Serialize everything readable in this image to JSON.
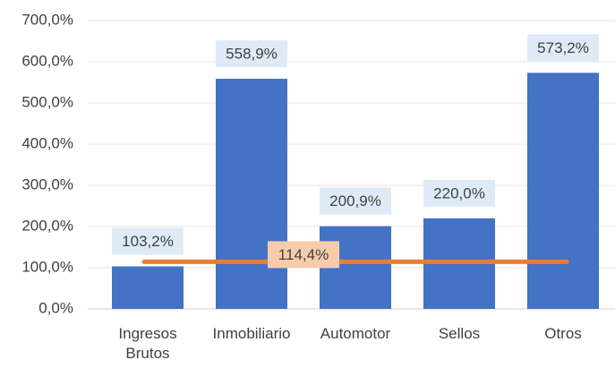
{
  "chart_data": {
    "type": "bar",
    "categories": [
      "Ingresos Brutos",
      "Inmobiliario",
      "Automotor",
      "Sellos",
      "Otros"
    ],
    "values": [
      103.2,
      558.9,
      200.9,
      220.0,
      573.2
    ],
    "value_labels": [
      "103,2%",
      "558,9%",
      "200,9%",
      "220,0%",
      "573,2%"
    ],
    "color": "#4472c4",
    "reference_line": {
      "value": 114.4,
      "label": "114,4%",
      "color": "#ed7d31"
    },
    "ylim": [
      0,
      700
    ],
    "yticks": [
      {
        "value": 0,
        "label": "0,0%"
      },
      {
        "value": 100,
        "label": "100,0%"
      },
      {
        "value": 200,
        "label": "200,0%"
      },
      {
        "value": 300,
        "label": "300,0%"
      },
      {
        "value": 400,
        "label": "400,0%"
      },
      {
        "value": 500,
        "label": "500,0%"
      },
      {
        "value": 600,
        "label": "600,0%"
      },
      {
        "value": 700,
        "label": "700,0%"
      }
    ],
    "grid": true
  }
}
